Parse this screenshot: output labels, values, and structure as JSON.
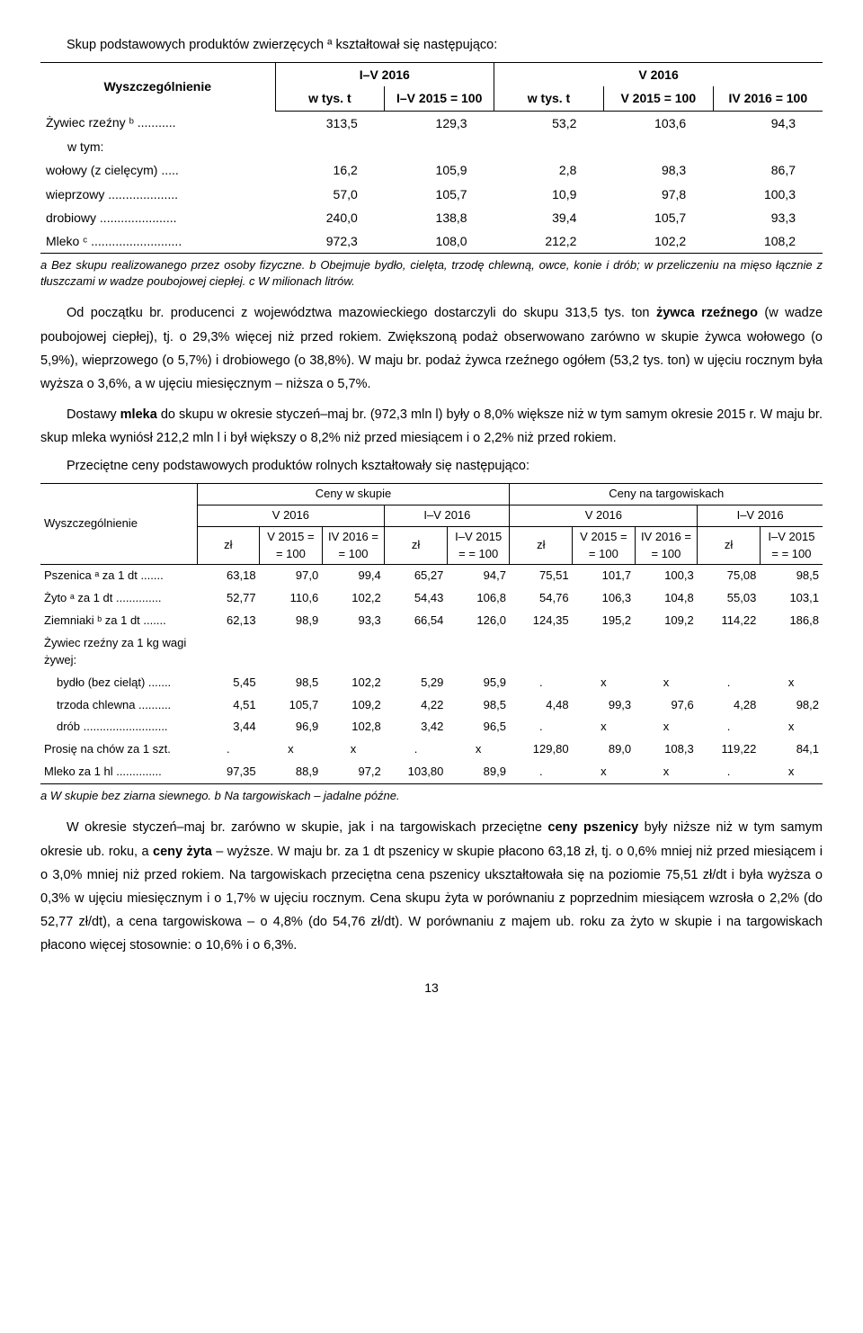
{
  "intro1": "Skup podstawowych produktów zwierzęcych ª kształtował się następująco:",
  "table1": {
    "head": {
      "c0": "Wyszczególnienie",
      "g1": "I–V 2016",
      "g2": "V 2016",
      "h1": "w tys. t",
      "h2": "I–V 2015 = 100",
      "h3": "w tys. t",
      "h4": "V 2015 = 100",
      "h5": "IV 2016 = 100"
    },
    "rows": [
      {
        "label": "Żywiec rzeźny ᵇ ...........",
        "v": [
          "313,5",
          "129,3",
          "53,2",
          "103,6",
          "94,3"
        ]
      },
      {
        "label": "w tym:",
        "v": [
          "",
          "",
          "",
          "",
          ""
        ]
      },
      {
        "label": "wołowy (z cielęcym) .....",
        "v": [
          "16,2",
          "105,9",
          "2,8",
          "98,3",
          "86,7"
        ]
      },
      {
        "label": "wieprzowy ....................",
        "v": [
          "57,0",
          "105,7",
          "10,9",
          "97,8",
          "100,3"
        ]
      },
      {
        "label": "drobiowy ......................",
        "v": [
          "240,0",
          "138,8",
          "39,4",
          "105,7",
          "93,3"
        ]
      },
      {
        "label": "Mleko ᶜ ..........................",
        "v": [
          "972,3",
          "108,0",
          "212,2",
          "102,2",
          "108,2"
        ]
      }
    ]
  },
  "footnote1": "a Bez skupu realizowanego przez osoby fizyczne. b Obejmuje bydło, cielęta, trzodę chlewną, owce, konie i drób; w przeliczeniu na mięso łącznie z tłuszczami w wadze poubojowej ciepłej. c W milionach litrów.",
  "p1a": "Od początku br. producenci z województwa mazowieckiego dostarczyli do skupu 313,5 tys. ton ",
  "p1b": "żywca rzeźnego",
  "p1c": " (w wadze poubojowej ciepłej), tj. o 29,3% więcej niż przed rokiem. Zwiększoną podaż obserwowano zarówno w skupie żywca wołowego (o 5,9%), wieprzowego (o 5,7%) i drobiowego (o 38,8%). W maju br. podaż żywca rzeźnego ogółem (53,2 tys. ton) w ujęciu rocznym była wyższa o 3,6%, a w ujęciu miesięcznym – niższa o 5,7%.",
  "p2a": "Dostawy ",
  "p2b": "mleka",
  "p2c": " do skupu w okresie styczeń–maj br. (972,3 mln l) były o 8,0% większe niż w tym samym okresie 2015 r. W maju br. skup mleka wyniósł 212,2 mln l i był większy o 8,2% niż przed miesiącem i o 2,2% niż przed rokiem.",
  "intro2": "Przeciętne ceny podstawowych produktów rolnych kształtowały się następująco:",
  "table2": {
    "head": {
      "c0": "Wyszczególnienie",
      "g1": "Ceny w skupie",
      "g2": "Ceny na targowiskach",
      "s1": "V 2016",
      "s2": "I–V 2016",
      "s3": "V 2016",
      "s4": "I–V 2016",
      "u_zl": "zł",
      "u_v15": "V\n2015 =\n= 100",
      "u_iv16": "IV\n2016 =\n= 100",
      "u_iv15": "I–V\n2015 =\n= 100"
    },
    "rows": [
      {
        "label": "Pszenica ᵃ za 1 dt .......",
        "v": [
          "63,18",
          "97,0",
          "99,4",
          "65,27",
          "94,7",
          "75,51",
          "101,7",
          "100,3",
          "75,08",
          "98,5"
        ]
      },
      {
        "label": "Żyto ᵃ za 1 dt ..............",
        "v": [
          "52,77",
          "110,6",
          "102,2",
          "54,43",
          "106,8",
          "54,76",
          "106,3",
          "104,8",
          "55,03",
          "103,1"
        ]
      },
      {
        "label": "Ziemniaki ᵇ za 1 dt .......",
        "v": [
          "62,13",
          "98,9",
          "93,3",
          "66,54",
          "126,0",
          "124,35",
          "195,2",
          "109,2",
          "114,22",
          "186,8"
        ]
      },
      {
        "label": "Żywiec rzeźny za 1 kg wagi żywej:",
        "v": [
          "",
          "",
          "",
          "",
          "",
          "",
          "",
          "",
          "",
          ""
        ]
      },
      {
        "label": "bydło (bez cieląt) .......",
        "v": [
          "5,45",
          "98,5",
          "102,2",
          "5,29",
          "95,9",
          ".",
          "x",
          "x",
          ".",
          "x"
        ]
      },
      {
        "label": "trzoda chlewna ..........",
        "v": [
          "4,51",
          "105,7",
          "109,2",
          "4,22",
          "98,5",
          "4,48",
          "99,3",
          "97,6",
          "4,28",
          "98,2"
        ]
      },
      {
        "label": "drób ..........................",
        "v": [
          "3,44",
          "96,9",
          "102,8",
          "3,42",
          "96,5",
          ".",
          "x",
          "x",
          ".",
          "x"
        ]
      },
      {
        "label": "Prosię na chów za 1 szt.",
        "v": [
          ".",
          "x",
          "x",
          ".",
          "x",
          "129,80",
          "89,0",
          "108,3",
          "119,22",
          "84,1"
        ]
      },
      {
        "label": "Mleko za 1 hl ..............",
        "v": [
          "97,35",
          "88,9",
          "97,2",
          "103,80",
          "89,9",
          ".",
          "x",
          "x",
          ".",
          "x"
        ]
      }
    ]
  },
  "footnote2": "a W skupie bez ziarna siewnego. b Na targowiskach – jadalne późne.",
  "p3a": "W okresie styczeń–maj br. zarówno w skupie, jak i na targowiskach przeciętne ",
  "p3b": "ceny pszenicy",
  "p3c": " były niższe niż w tym samym okresie ub. roku, a ",
  "p3d": "ceny żyta",
  "p3e": " – wyższe. W maju br. za 1 dt pszenicy w skupie płacono 63,18 zł, tj. o 0,6% mniej niż przed miesiącem i o 3,0% mniej niż przed rokiem. Na targowiskach przeciętna cena pszenicy ukształtowała się na poziomie 75,51 zł/dt i była wyższa o 0,3% w ujęciu miesięcznym i o 1,7% w ujęciu rocznym. Cena skupu żyta w porównaniu z poprzednim miesiącem wzrosła o 2,2% (do 52,77 zł/dt), a cena targowiskowa – o 4,8% (do 54,76 zł/dt). W porównaniu z majem ub. roku za żyto w skupie i na targowiskach płacono więcej stosownie: o 10,6% i o 6,3%.",
  "pagenum": "13"
}
